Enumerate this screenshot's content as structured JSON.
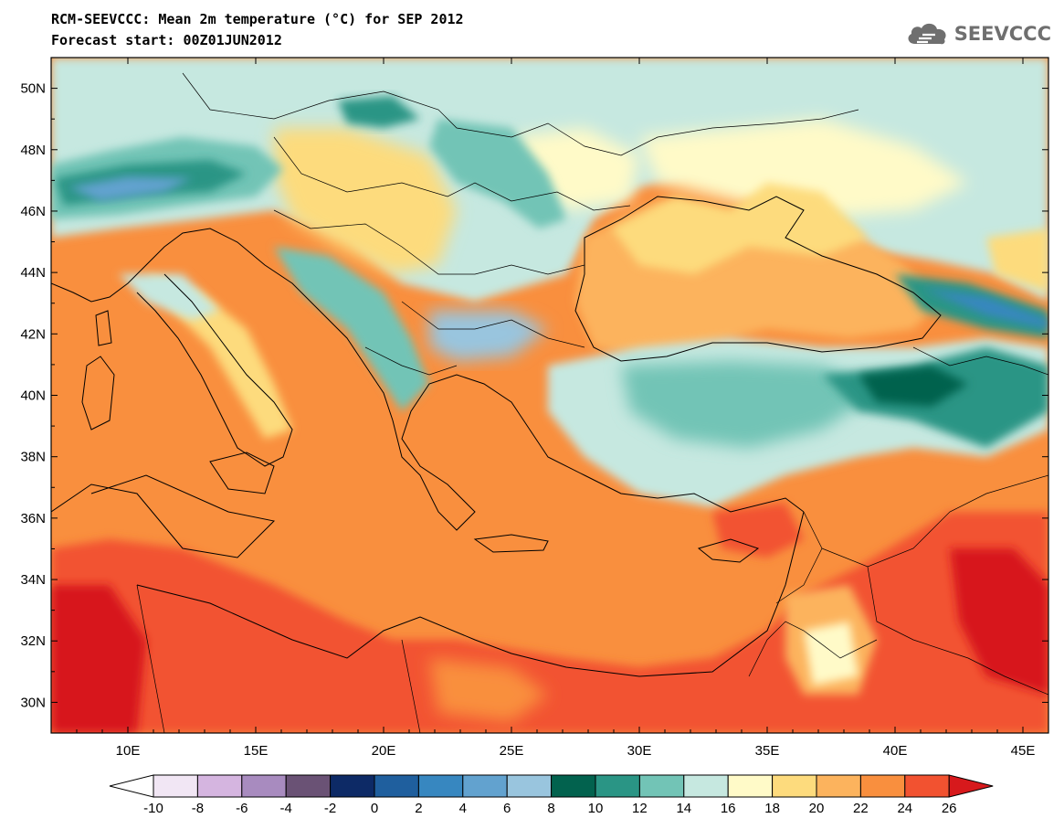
{
  "header": {
    "title": "RCM-SEEVCCC: Mean 2m temperature (°C) for SEP 2012",
    "subtitle": "Forecast start: 00Z01JUN2012",
    "logo_text": "SEEVCCC",
    "logo_icon": "cloud-icon",
    "logo_color": "#6f6f6f"
  },
  "map": {
    "lon_range": [
      7,
      46
    ],
    "lat_range": [
      29,
      51
    ],
    "lon_ticks": [
      "10E",
      "15E",
      "20E",
      "25E",
      "30E",
      "35E",
      "40E",
      "45E"
    ],
    "lat_ticks": [
      "30N",
      "32N",
      "34N",
      "36N",
      "38N",
      "40N",
      "42N",
      "44N",
      "46N",
      "48N",
      "50N"
    ]
  },
  "colorbar": {
    "labels": [
      "-10",
      "-8",
      "-6",
      "-4",
      "-2",
      "0",
      "2",
      "4",
      "6",
      "8",
      "10",
      "12",
      "14",
      "16",
      "18",
      "20",
      "22",
      "24",
      "26"
    ],
    "colors": [
      "#f1e6f4",
      "#d5b5e0",
      "#a88bbf",
      "#6a5275",
      "#0d2a66",
      "#1f5f9e",
      "#3787c0",
      "#62a2cf",
      "#99c5de",
      "#02624e",
      "#2a9585",
      "#72c4b6",
      "#c6e8e0",
      "#fffac8",
      "#fddb7d",
      "#fcb35d",
      "#f98f3e",
      "#f25230"
    ],
    "under_color": "#ffffff",
    "over_color": "#d7191c"
  }
}
